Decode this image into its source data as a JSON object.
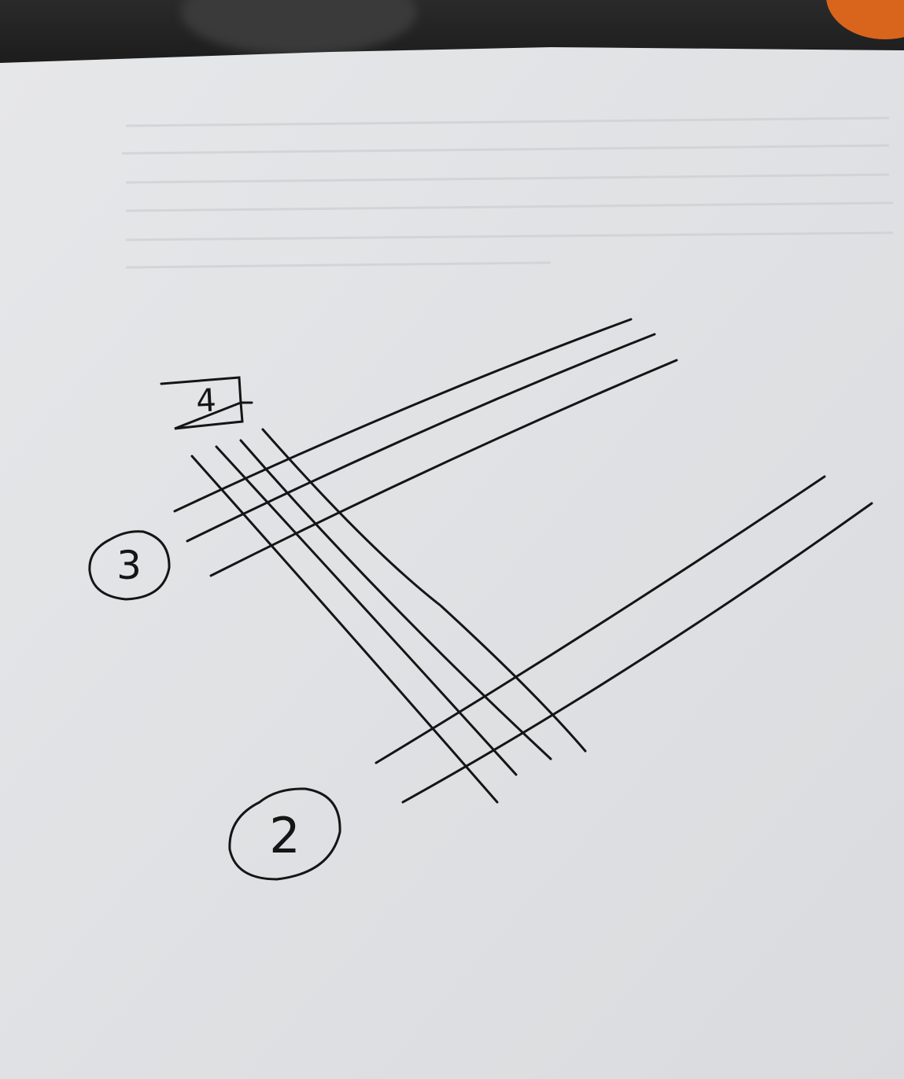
{
  "photo": {
    "labels": {
      "box_number": "4",
      "circle_three": "3",
      "circle_two": "2"
    },
    "colors": {
      "paper": "#e3e4e6",
      "ink": "#151515",
      "backdrop": "#1e1e1e",
      "orange_object": "#d9651c"
    }
  }
}
